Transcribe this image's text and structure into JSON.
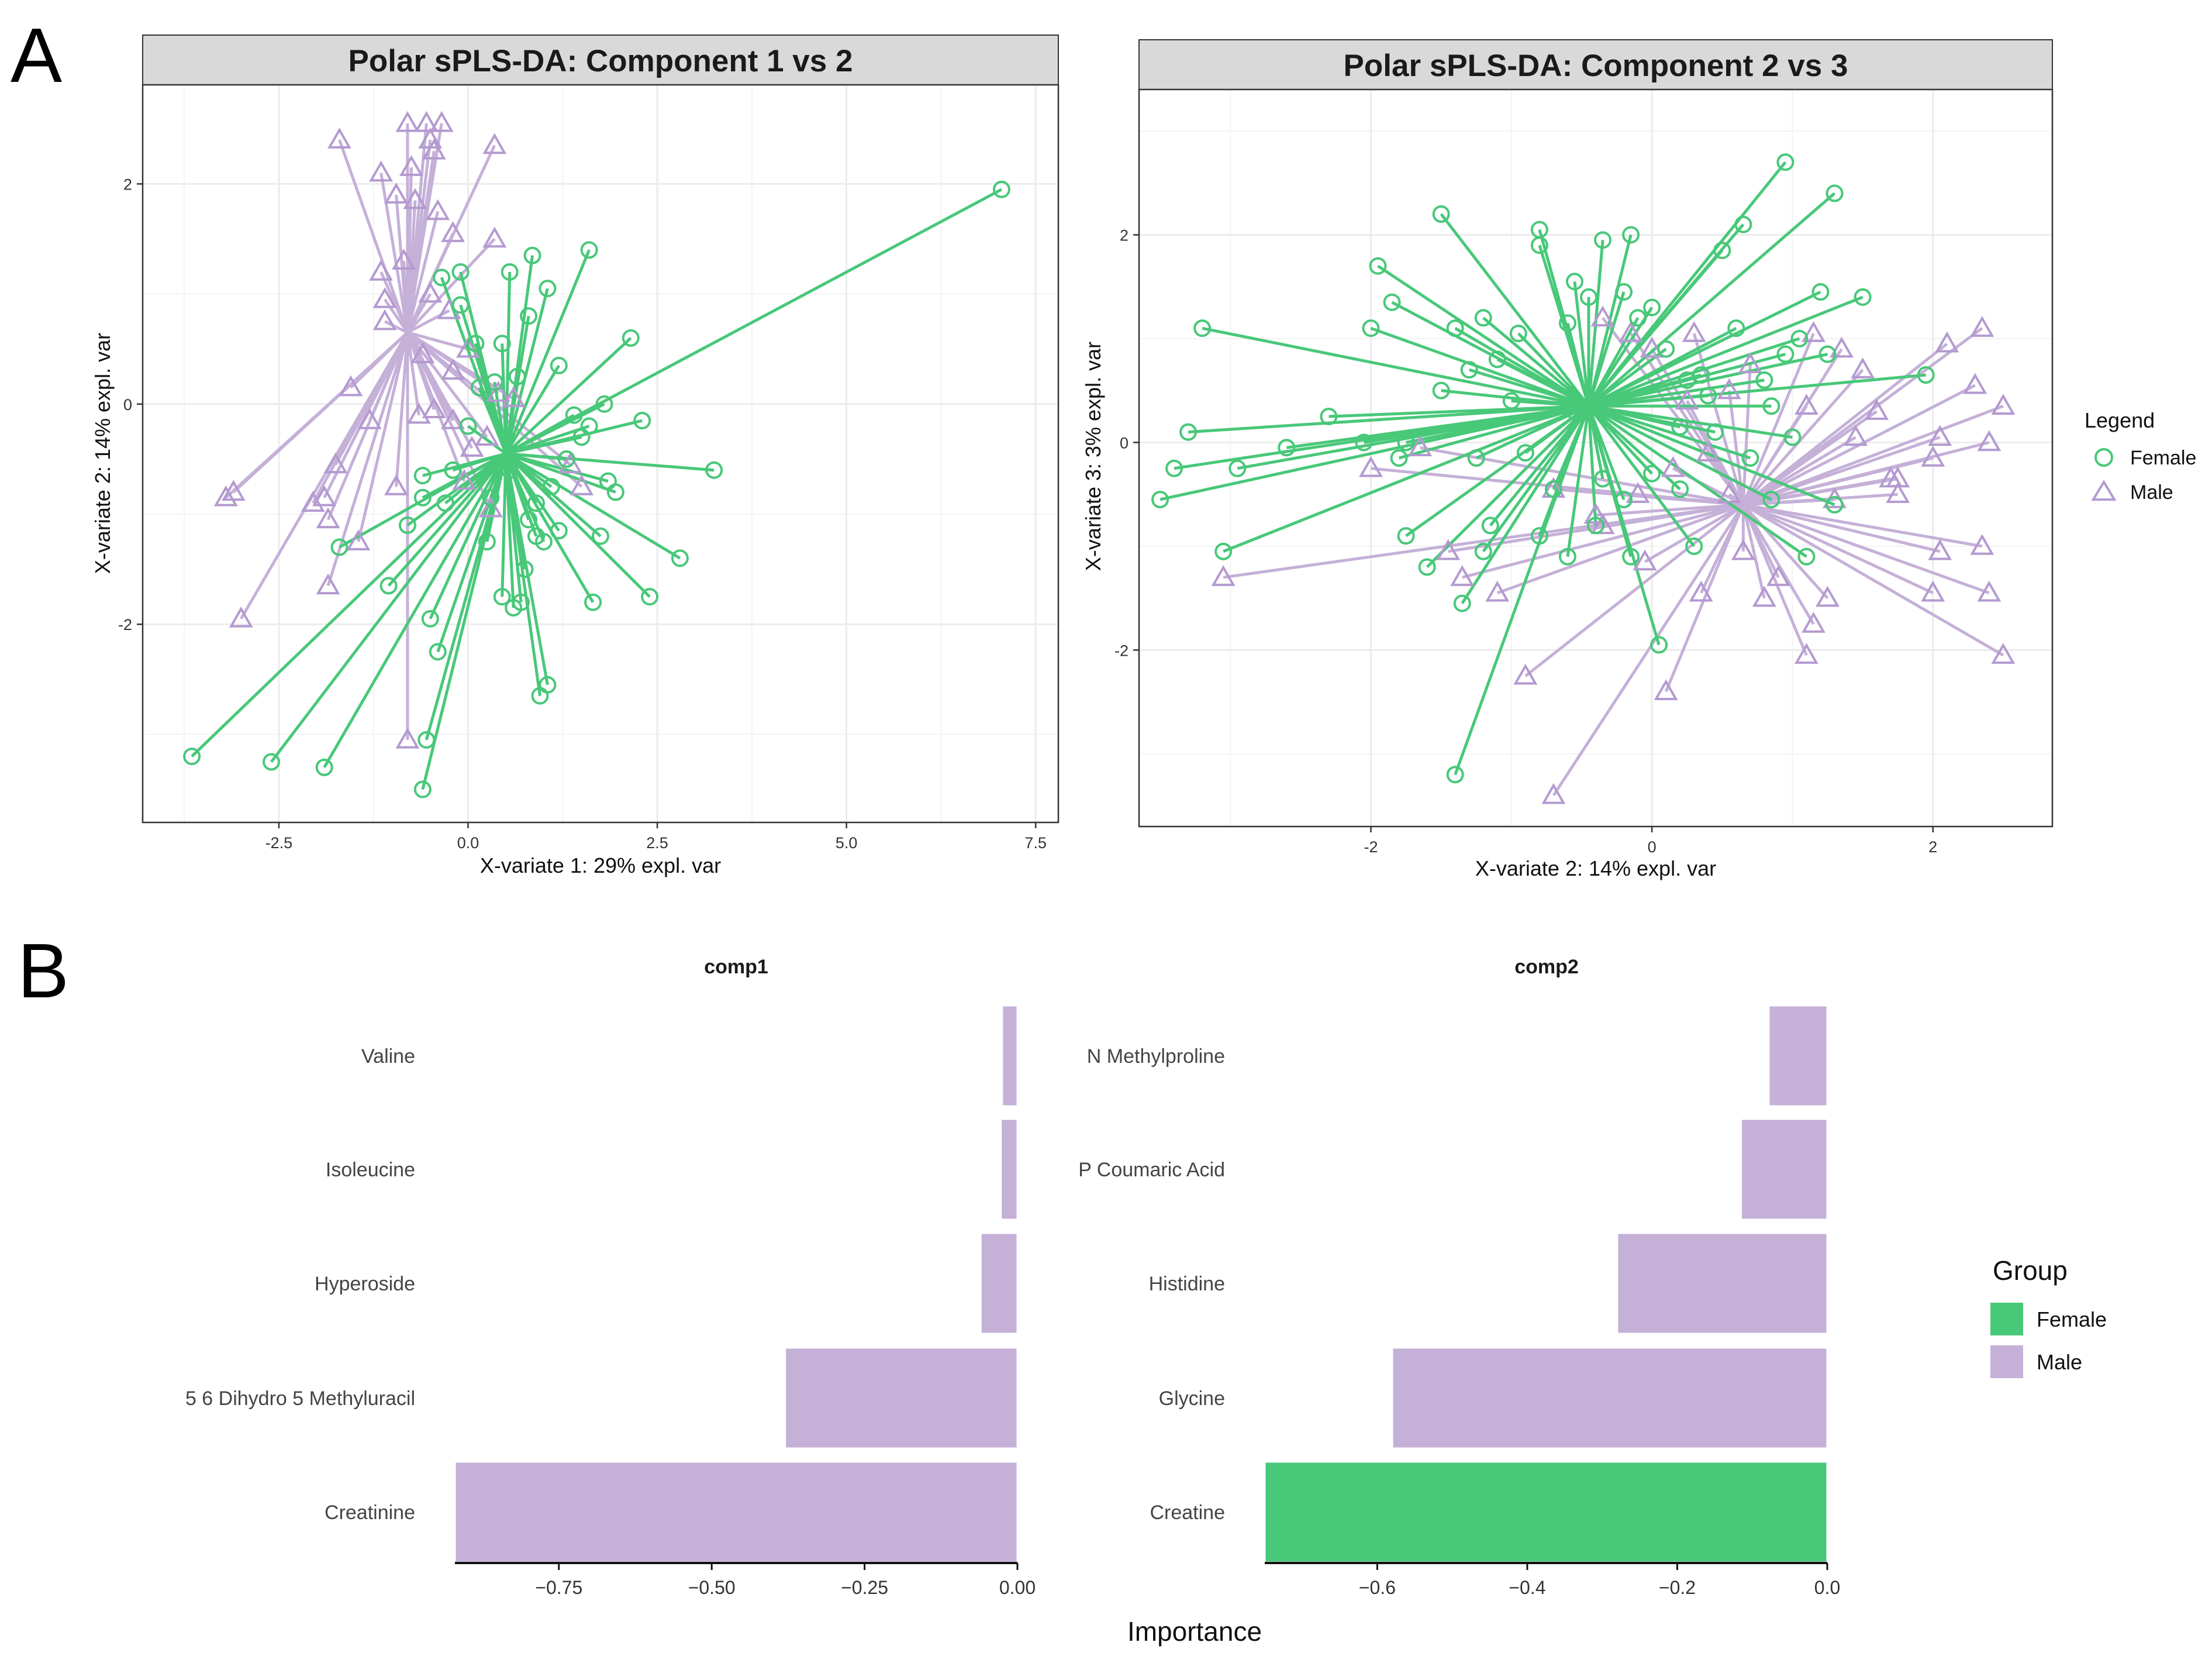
{
  "figure": {
    "panel_a_letter": "A",
    "panel_b_letter": "B"
  },
  "colors": {
    "female": "#48c879",
    "male": "#c5b0d8",
    "male_dark": "#b49ad0",
    "strip_bg": "#d9d9d9",
    "grid": "#ececec"
  },
  "chart_data": [
    {
      "type": "scatter",
      "title": "Polar sPLS-DA: Component 1 vs 2",
      "xlabel": "X-variate 1: 29% expl. var",
      "ylabel": "X-variate 2: 14% expl. var",
      "xlim": [
        -4.3,
        7.8
      ],
      "ylim": [
        -3.8,
        2.9
      ],
      "xticks": [
        "-2.5",
        "0.0",
        "2.5",
        "5.0",
        "7.5"
      ],
      "yticks": [
        "-2",
        "0",
        "2"
      ],
      "grid": true,
      "style": "star plot: each sample linked to its group centroid",
      "series": [
        {
          "name": "Female",
          "marker": "circle",
          "centroid": [
            0.5,
            -0.45
          ],
          "points": [
            [
              7.05,
              1.95
            ],
            [
              -3.65,
              -3.2
            ],
            [
              -2.6,
              -3.25
            ],
            [
              -1.9,
              -3.3
            ],
            [
              -0.6,
              -3.5
            ],
            [
              -0.55,
              -3.05
            ],
            [
              -0.5,
              -1.95
            ],
            [
              -0.4,
              -2.25
            ],
            [
              0.95,
              -2.65
            ],
            [
              1.05,
              -2.55
            ],
            [
              1.65,
              -1.8
            ],
            [
              2.4,
              -1.75
            ],
            [
              2.8,
              -1.4
            ],
            [
              3.25,
              -0.6
            ],
            [
              2.3,
              -0.15
            ],
            [
              2.15,
              0.6
            ],
            [
              1.85,
              -0.7
            ],
            [
              1.95,
              -0.8
            ],
            [
              1.75,
              -1.2
            ],
            [
              1.6,
              1.4
            ],
            [
              1.2,
              0.35
            ],
            [
              1.05,
              1.05
            ],
            [
              0.85,
              1.35
            ],
            [
              0.8,
              0.8
            ],
            [
              0.55,
              1.2
            ],
            [
              0.45,
              0.55
            ],
            [
              0.35,
              0.2
            ],
            [
              0.15,
              0.15
            ],
            [
              -0.1,
              1.2
            ],
            [
              -0.35,
              1.15
            ],
            [
              -0.6,
              -0.65
            ],
            [
              -0.6,
              -0.85
            ],
            [
              -0.8,
              -1.1
            ],
            [
              -1.05,
              -1.65
            ],
            [
              -1.7,
              -1.3
            ],
            [
              -0.2,
              -0.6
            ],
            [
              0.0,
              -0.2
            ],
            [
              0.25,
              -1.25
            ],
            [
              0.45,
              -1.75
            ],
            [
              0.6,
              -1.85
            ],
            [
              0.7,
              -1.8
            ],
            [
              0.75,
              -1.5
            ],
            [
              0.8,
              -1.05
            ],
            [
              0.9,
              -1.2
            ],
            [
              1.0,
              -1.25
            ],
            [
              1.1,
              -0.75
            ],
            [
              1.2,
              -1.15
            ],
            [
              1.3,
              -0.5
            ],
            [
              1.4,
              -0.1
            ],
            [
              1.5,
              -0.3
            ],
            [
              1.6,
              -0.2
            ],
            [
              1.8,
              0.0
            ],
            [
              0.3,
              -0.85
            ],
            [
              0.55,
              -0.6
            ],
            [
              0.65,
              0.25
            ],
            [
              0.9,
              -0.9
            ],
            [
              -0.3,
              -0.9
            ],
            [
              0.1,
              0.55
            ],
            [
              -0.1,
              0.9
            ]
          ]
        },
        {
          "name": "Male",
          "marker": "triangle",
          "centroid": [
            -0.8,
            0.65
          ],
          "points": [
            [
              -0.8,
              2.55
            ],
            [
              -0.55,
              2.55
            ],
            [
              -0.35,
              2.55
            ],
            [
              0.35,
              2.35
            ],
            [
              -1.7,
              2.4
            ],
            [
              -0.5,
              2.4
            ],
            [
              -1.15,
              2.1
            ],
            [
              -0.75,
              2.15
            ],
            [
              -0.45,
              2.3
            ],
            [
              -0.95,
              1.9
            ],
            [
              -0.7,
              1.85
            ],
            [
              -0.4,
              1.75
            ],
            [
              -0.2,
              1.55
            ],
            [
              0.35,
              1.5
            ],
            [
              -1.15,
              1.2
            ],
            [
              -0.85,
              1.3
            ],
            [
              -1.1,
              0.95
            ],
            [
              -0.5,
              1.0
            ],
            [
              -1.1,
              0.75
            ],
            [
              -0.25,
              0.85
            ],
            [
              -1.55,
              0.15
            ],
            [
              -3.2,
              -0.85
            ],
            [
              -3.1,
              -0.8
            ],
            [
              -3.0,
              -1.95
            ],
            [
              -2.05,
              -0.9
            ],
            [
              -1.9,
              -0.85
            ],
            [
              -1.85,
              -1.05
            ],
            [
              -1.75,
              -0.55
            ],
            [
              -1.45,
              -1.25
            ],
            [
              -1.85,
              -1.65
            ],
            [
              -0.95,
              -0.75
            ],
            [
              -0.8,
              -3.05
            ],
            [
              -1.3,
              -0.15
            ],
            [
              -0.45,
              -0.05
            ],
            [
              -0.65,
              -0.1
            ],
            [
              -0.2,
              -0.15
            ],
            [
              0.05,
              -0.4
            ],
            [
              0.25,
              -0.3
            ],
            [
              0.4,
              0.1
            ],
            [
              0.6,
              0.05
            ],
            [
              -0.05,
              -0.7
            ],
            [
              0.3,
              -0.95
            ],
            [
              1.35,
              -0.55
            ],
            [
              1.5,
              -0.75
            ],
            [
              -0.6,
              0.45
            ],
            [
              -0.2,
              0.3
            ],
            [
              0.0,
              0.5
            ]
          ]
        }
      ],
      "legend": {
        "title": "Legend",
        "entries": [
          "Female",
          "Male"
        ],
        "placement": "right"
      }
    },
    {
      "type": "scatter",
      "title": "Polar sPLS-DA: Component 2 vs 3",
      "xlabel": "X-variate 2: 14% expl. var",
      "ylabel": "X-variate 3: 3% expl. var",
      "xlim": [
        -3.65,
        2.85
      ],
      "ylim": [
        -3.7,
        3.4
      ],
      "xticks": [
        "-2",
        "0",
        "2"
      ],
      "yticks": [
        "-2",
        "0",
        "2"
      ],
      "grid": true,
      "style": "star plot: each sample linked to its group centroid",
      "series": [
        {
          "name": "Female",
          "marker": "circle",
          "centroid": [
            -0.45,
            0.35
          ],
          "points": [
            [
              0.95,
              2.7
            ],
            [
              1.3,
              2.4
            ],
            [
              0.65,
              2.1
            ],
            [
              0.5,
              1.85
            ],
            [
              1.5,
              1.4
            ],
            [
              1.2,
              1.45
            ],
            [
              1.05,
              1.0
            ],
            [
              0.6,
              1.1
            ],
            [
              0.95,
              0.85
            ],
            [
              1.25,
              0.85
            ],
            [
              1.95,
              0.65
            ],
            [
              0.35,
              0.65
            ],
            [
              0.4,
              0.45
            ],
            [
              0.85,
              0.35
            ],
            [
              1.0,
              0.05
            ],
            [
              1.3,
              -0.6
            ],
            [
              1.1,
              -1.1
            ],
            [
              0.05,
              -1.95
            ],
            [
              0.3,
              -1.0
            ],
            [
              0.2,
              -0.45
            ],
            [
              -0.15,
              -1.1
            ],
            [
              -0.6,
              -1.1
            ],
            [
              -0.8,
              -0.9
            ],
            [
              -1.15,
              -0.8
            ],
            [
              -1.2,
              -1.05
            ],
            [
              -1.35,
              -1.55
            ],
            [
              -1.4,
              -3.2
            ],
            [
              -1.6,
              -1.2
            ],
            [
              -1.75,
              -0.9
            ],
            [
              -1.75,
              0.0
            ],
            [
              -1.8,
              -0.15
            ],
            [
              -2.05,
              0.0
            ],
            [
              -2.3,
              0.25
            ],
            [
              -2.6,
              -0.05
            ],
            [
              -2.95,
              -0.25
            ],
            [
              -3.4,
              -0.25
            ],
            [
              -3.5,
              -0.55
            ],
            [
              -3.3,
              0.1
            ],
            [
              -3.2,
              1.1
            ],
            [
              -3.05,
              -1.05
            ],
            [
              -2.0,
              1.1
            ],
            [
              -1.95,
              1.7
            ],
            [
              -1.85,
              1.35
            ],
            [
              -1.5,
              2.2
            ],
            [
              -1.5,
              0.5
            ],
            [
              -1.4,
              1.1
            ],
            [
              -1.3,
              0.7
            ],
            [
              -1.2,
              1.2
            ],
            [
              -1.1,
              0.8
            ],
            [
              -1.0,
              0.4
            ],
            [
              -0.95,
              1.05
            ],
            [
              -0.8,
              2.05
            ],
            [
              -0.8,
              1.9
            ],
            [
              -0.55,
              1.55
            ],
            [
              -0.45,
              1.4
            ],
            [
              -0.35,
              1.95
            ],
            [
              -0.2,
              1.45
            ],
            [
              -0.15,
              2.0
            ],
            [
              -0.1,
              1.2
            ],
            [
              0.0,
              1.3
            ],
            [
              0.1,
              0.9
            ],
            [
              0.25,
              0.6
            ],
            [
              -0.6,
              1.15
            ],
            [
              -0.9,
              -0.1
            ],
            [
              -0.7,
              -0.45
            ],
            [
              -0.4,
              -0.8
            ],
            [
              -0.35,
              -0.35
            ],
            [
              -0.2,
              -0.55
            ],
            [
              0.0,
              -0.3
            ],
            [
              0.2,
              0.15
            ],
            [
              0.45,
              0.1
            ],
            [
              0.7,
              -0.15
            ],
            [
              0.8,
              0.6
            ],
            [
              0.85,
              -0.55
            ],
            [
              -1.25,
              -0.15
            ],
            [
              -0.55,
              0.3
            ]
          ]
        },
        {
          "name": "Male",
          "marker": "triangle",
          "centroid": [
            0.65,
            -0.6
          ],
          "points": [
            [
              2.35,
              1.1
            ],
            [
              2.1,
              0.95
            ],
            [
              2.3,
              0.55
            ],
            [
              2.5,
              0.35
            ],
            [
              2.4,
              0.0
            ],
            [
              2.35,
              -1.0
            ],
            [
              2.4,
              -1.45
            ],
            [
              2.5,
              -2.05
            ],
            [
              2.05,
              -1.05
            ],
            [
              2.0,
              -1.45
            ],
            [
              2.05,
              0.05
            ],
            [
              2.0,
              -0.15
            ],
            [
              1.7,
              -0.35
            ],
            [
              1.75,
              -0.5
            ],
            [
              1.6,
              0.3
            ],
            [
              1.45,
              0.05
            ],
            [
              1.5,
              0.7
            ],
            [
              1.35,
              0.9
            ],
            [
              1.15,
              1.05
            ],
            [
              1.1,
              0.35
            ],
            [
              1.3,
              -0.55
            ],
            [
              1.25,
              -1.5
            ],
            [
              1.1,
              -2.05
            ],
            [
              0.65,
              -1.05
            ],
            [
              0.8,
              -1.5
            ],
            [
              0.55,
              -0.5
            ],
            [
              0.35,
              -1.45
            ],
            [
              0.4,
              -0.1
            ],
            [
              0.55,
              0.5
            ],
            [
              0.1,
              -2.4
            ],
            [
              -0.05,
              -1.15
            ],
            [
              -0.35,
              -0.8
            ],
            [
              -0.7,
              -3.4
            ],
            [
              -0.9,
              -2.25
            ],
            [
              -1.35,
              -1.3
            ],
            [
              -1.45,
              -1.05
            ],
            [
              -1.65,
              -0.05
            ],
            [
              -2.0,
              -0.25
            ],
            [
              -3.05,
              -1.3
            ],
            [
              -1.1,
              -1.45
            ],
            [
              -0.7,
              -0.45
            ],
            [
              -0.4,
              -0.7
            ],
            [
              -0.1,
              -0.5
            ],
            [
              0.15,
              -0.25
            ],
            [
              -0.35,
              1.2
            ],
            [
              -0.15,
              1.05
            ],
            [
              0.0,
              0.9
            ],
            [
              0.3,
              1.05
            ],
            [
              0.7,
              0.75
            ],
            [
              1.15,
              -1.75
            ],
            [
              0.9,
              -1.3
            ],
            [
              1.75,
              -0.35
            ],
            [
              0.25,
              0.4
            ]
          ]
        }
      ]
    },
    {
      "type": "bar",
      "orientation": "horizontal",
      "title": "comp1",
      "categories": [
        "Creatinine",
        "5 6 Dihydro 5 Methyluracil",
        "Hyperoside",
        "Isoleucine",
        "Valine"
      ],
      "values": [
        -0.92,
        -0.38,
        -0.06,
        -0.027,
        -0.025
      ],
      "groups": [
        "Male",
        "Male",
        "Male",
        "Male",
        "Male"
      ],
      "xlim": [
        -0.92,
        0.0
      ],
      "xticks": [
        "−0.75",
        "−0.50",
        "−0.25",
        "0.00"
      ]
    },
    {
      "type": "bar",
      "orientation": "horizontal",
      "title": "comp2",
      "categories": [
        "Creatine",
        "Glycine",
        "Histidine",
        "P Coumaric Acid",
        "N Methylproline"
      ],
      "values": [
        -0.75,
        -0.58,
        -0.28,
        -0.115,
        -0.078
      ],
      "groups": [
        "Female",
        "Male",
        "Male",
        "Male",
        "Male"
      ],
      "xlim": [
        -0.75,
        0.0
      ],
      "xticks": [
        "−0.6",
        "−0.4",
        "−0.2",
        "0.0"
      ]
    }
  ],
  "bar_axis_title": "Importance",
  "bar_legend": {
    "title": "Group",
    "entries": [
      "Female",
      "Male"
    ]
  }
}
